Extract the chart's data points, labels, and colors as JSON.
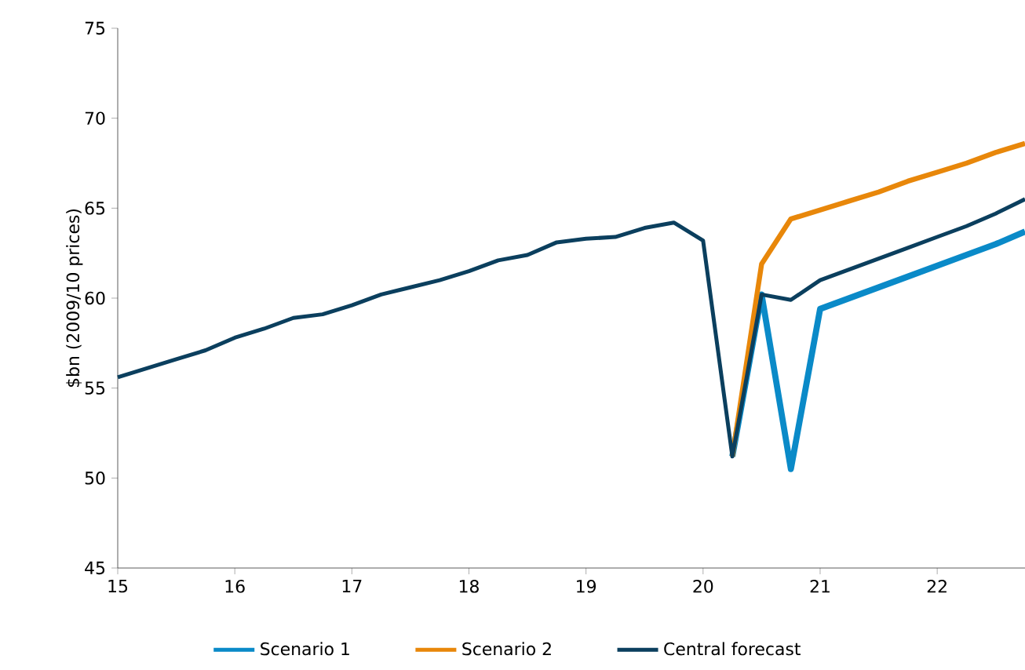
{
  "chart_data": {
    "type": "line",
    "ylabel": "$bn (2009/10 prices)",
    "xlim": [
      15,
      22.75
    ],
    "ylim": [
      45,
      75
    ],
    "xticks": [
      15,
      16,
      17,
      18,
      19,
      20,
      21,
      22
    ],
    "yticks": [
      45,
      50,
      55,
      60,
      65,
      70,
      75
    ],
    "legend": "bottom",
    "series": [
      {
        "name": "Scenario 1",
        "color": "#0a8ac8",
        "x": [
          20.25,
          20.5,
          20.75,
          21,
          21.25,
          21.5,
          21.75,
          22,
          22.25,
          22.5,
          22.75
        ],
        "values": [
          51.2,
          60.2,
          50.5,
          59.4,
          60.0,
          60.6,
          61.2,
          61.8,
          62.4,
          63.0,
          63.7
        ]
      },
      {
        "name": "Scenario 2",
        "color": "#e8870a",
        "x": [
          20.25,
          20.5,
          20.75,
          21,
          21.25,
          21.5,
          21.75,
          22,
          22.25,
          22.5,
          22.75
        ],
        "values": [
          51.2,
          61.9,
          64.4,
          64.9,
          65.4,
          65.9,
          66.5,
          67.0,
          67.5,
          68.1,
          68.6
        ]
      },
      {
        "name": "Central forecast",
        "color": "#0b3f5e",
        "x": [
          15,
          15.25,
          15.5,
          15.75,
          16,
          16.25,
          16.5,
          16.75,
          17,
          17.25,
          17.5,
          17.75,
          18,
          18.25,
          18.5,
          18.75,
          19,
          19.25,
          19.5,
          19.75,
          20,
          20.25,
          20.5,
          20.75,
          21,
          21.25,
          21.5,
          21.75,
          22,
          22.25,
          22.5,
          22.75
        ],
        "values": [
          55.6,
          56.1,
          56.6,
          57.1,
          57.8,
          58.3,
          58.9,
          59.1,
          59.6,
          60.2,
          60.6,
          61.0,
          61.5,
          62.1,
          62.4,
          63.1,
          63.3,
          63.4,
          63.9,
          64.2,
          63.2,
          51.2,
          60.2,
          59.9,
          61.0,
          61.6,
          62.2,
          62.8,
          63.4,
          64.0,
          64.7,
          65.5
        ]
      }
    ]
  }
}
